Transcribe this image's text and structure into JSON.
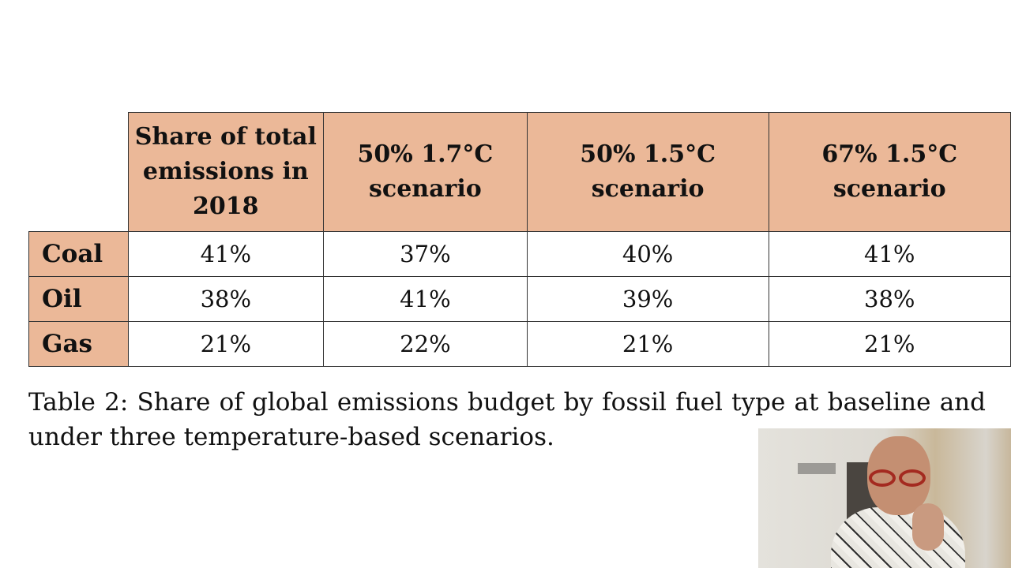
{
  "table": {
    "headers": [
      "Share of total emissions in 2018",
      "50% 1.7°C scenario",
      "50% 1.5°C scenario",
      "67% 1.5°C scenario"
    ],
    "rows": [
      {
        "label": "Coal",
        "values": [
          "41%",
          "37%",
          "40%",
          "41%"
        ]
      },
      {
        "label": "Oil",
        "values": [
          "38%",
          "41%",
          "39%",
          "38%"
        ]
      },
      {
        "label": "Gas",
        "values": [
          "21%",
          "22%",
          "21%",
          "21%"
        ]
      }
    ]
  },
  "caption": "Table 2: Share of global emissions budget by fossil fuel type at baseline and under three temperature-based scenarios.",
  "colors": {
    "header_fill": "#ebb898",
    "border": "#333333"
  }
}
